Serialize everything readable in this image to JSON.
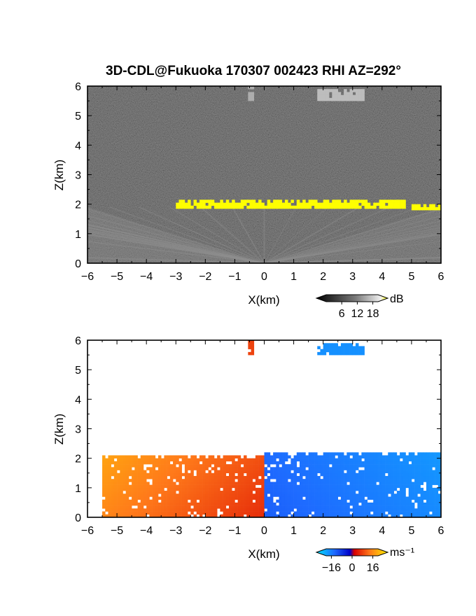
{
  "figure": {
    "title": "3D-CDL@Fukuoka 170307 002423 RHI AZ=292°"
  },
  "chart_data": [
    {
      "type": "heatmap",
      "panel": "reflectivity",
      "title": "3D-CDL@Fukuoka 170307 002423 RHI AZ=292°",
      "xlabel": "X(km)",
      "ylabel": "Z(km)",
      "xlim": [
        -6,
        6
      ],
      "ylim": [
        0,
        6
      ],
      "x_ticks": [
        "−6",
        "−5",
        "−4",
        "−3",
        "−2",
        "−1",
        "0",
        "1",
        "2",
        "3",
        "4",
        "5",
        "6"
      ],
      "y_ticks": [
        "0",
        "1",
        "2",
        "3",
        "4",
        "5",
        "6"
      ],
      "colorbar": {
        "unit": "dB",
        "ticks": [
          "6",
          "12",
          "18"
        ],
        "range": [
          0,
          20
        ],
        "colormap": "grayscale-to-yellow"
      },
      "features": [
        {
          "name": "cloud base layer (strong echo)",
          "x_range": [
            -3.0,
            4.8
          ],
          "z_range": [
            1.85,
            2.15
          ],
          "level_db": 20,
          "color": "#ffff00"
        },
        {
          "name": "cloud base layer (east)",
          "x_range": [
            5.0,
            6.0
          ],
          "z_range": [
            1.8,
            2.0
          ],
          "level_db": 20,
          "color": "#ffff00"
        },
        {
          "name": "sub-cloud beams",
          "x_range": [
            -6,
            6
          ],
          "z_range": [
            0,
            1.9
          ],
          "level_db": 12
        },
        {
          "name": "aloft echo near x=-0.5",
          "x_range": [
            -0.55,
            -0.4
          ],
          "z_range": [
            5.5,
            6.0
          ],
          "level_db": 14
        },
        {
          "name": "aloft echo near x=2-3",
          "x_range": [
            1.8,
            3.4
          ],
          "z_range": [
            5.5,
            5.9
          ],
          "level_db": 15
        }
      ]
    },
    {
      "type": "heatmap",
      "panel": "doppler velocity",
      "xlabel": "X(km)",
      "ylabel": "Z(km)",
      "xlim": [
        -6,
        6
      ],
      "ylim": [
        0,
        6
      ],
      "x_ticks": [
        "−6",
        "−5",
        "−4",
        "−3",
        "−2",
        "−1",
        "0",
        "1",
        "2",
        "3",
        "4",
        "5",
        "6"
      ],
      "y_ticks": [
        "0",
        "1",
        "2",
        "3",
        "4",
        "5",
        "6"
      ],
      "colorbar": {
        "unit": "ms⁻¹",
        "ticks": [
          "−16",
          "0",
          "16"
        ],
        "range": [
          -20,
          20
        ],
        "colormap": "cyan-blue-red-yellow"
      },
      "features": [
        {
          "name": "receding flow (west)",
          "x_range": [
            -5.5,
            0.0
          ],
          "z_range": [
            0,
            2.1
          ],
          "velocity_ms": 8
        },
        {
          "name": "approaching flow (east)",
          "x_range": [
            0.0,
            6.0
          ],
          "z_range": [
            0,
            2.2
          ],
          "velocity_ms": -9
        },
        {
          "name": "aloft echo near x=-0.5",
          "x_range": [
            -0.55,
            -0.4
          ],
          "z_range": [
            5.5,
            6.0
          ],
          "velocity_ms": 6
        },
        {
          "name": "aloft echo near x=2-3",
          "x_range": [
            1.8,
            3.4
          ],
          "z_range": [
            5.5,
            5.9
          ],
          "velocity_ms": -13
        }
      ]
    }
  ]
}
